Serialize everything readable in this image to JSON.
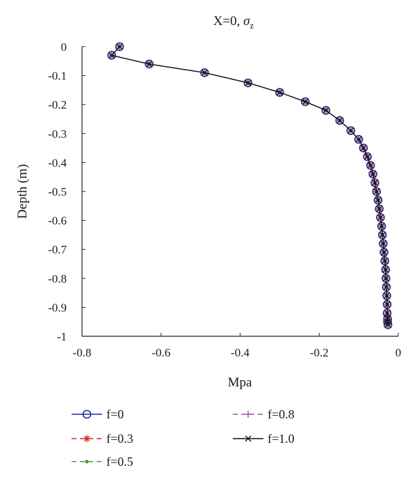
{
  "chart_data": {
    "type": "line",
    "title": "X=0, σz",
    "title_main": "X=0, ",
    "title_sigma": "σ",
    "title_sub": "z",
    "xlabel": "Mpa",
    "ylabel": "Depth (m)",
    "xlim": [
      -0.8,
      0
    ],
    "ylim": [
      -1,
      0
    ],
    "xticks": [
      -0.8,
      -0.6,
      -0.4,
      -0.2,
      0
    ],
    "xtick_labels": [
      "-0.8",
      "-0.6",
      "-0.4",
      "-0.2",
      "0"
    ],
    "yticks": [
      0,
      -0.1,
      -0.2,
      -0.3,
      -0.4,
      -0.5,
      -0.6,
      -0.7,
      -0.8,
      -0.9,
      -1
    ],
    "ytick_labels": [
      "0",
      "-0.1",
      "-0.2",
      "-0.3",
      "-0.4",
      "-0.5",
      "-0.6",
      "-0.7",
      "-0.8",
      "-0.9",
      "-1"
    ],
    "grid": false,
    "legend_placement": "bottom",
    "x": [
      -0.705,
      -0.725,
      -0.63,
      -0.49,
      -0.38,
      -0.3,
      -0.235,
      -0.183,
      -0.148,
      -0.12,
      -0.1,
      -0.088,
      -0.078,
      -0.07,
      -0.064,
      -0.059,
      -0.055,
      -0.051,
      -0.048,
      -0.045,
      -0.042,
      -0.04,
      -0.038,
      -0.036,
      -0.034,
      -0.032,
      -0.031,
      -0.03,
      -0.029,
      -0.028,
      -0.028,
      -0.027,
      -0.027,
      -0.026
    ],
    "y": [
      0,
      -0.03,
      -0.06,
      -0.09,
      -0.125,
      -0.158,
      -0.19,
      -0.22,
      -0.255,
      -0.29,
      -0.32,
      -0.35,
      -0.38,
      -0.41,
      -0.44,
      -0.47,
      -0.5,
      -0.53,
      -0.56,
      -0.59,
      -0.62,
      -0.65,
      -0.68,
      -0.71,
      -0.74,
      -0.77,
      -0.8,
      -0.83,
      -0.86,
      -0.89,
      -0.92,
      -0.94,
      -0.95,
      -0.96
    ],
    "series": [
      {
        "name": "f=0",
        "marker": "circle",
        "color": "#1f2d8f",
        "linestyle": "solid"
      },
      {
        "name": "f=0.3",
        "marker": "asterisk",
        "color": "#d62a20",
        "linestyle": "dashed"
      },
      {
        "name": "f=0.5",
        "marker": "dot",
        "color": "#4aa02c",
        "linestyle": "dashed"
      },
      {
        "name": "f=0.8",
        "marker": "plus",
        "color": "#b04ab0",
        "linestyle": "dashed"
      },
      {
        "name": "f=1.0",
        "marker": "x",
        "color": "#111111",
        "linestyle": "solid"
      }
    ]
  }
}
